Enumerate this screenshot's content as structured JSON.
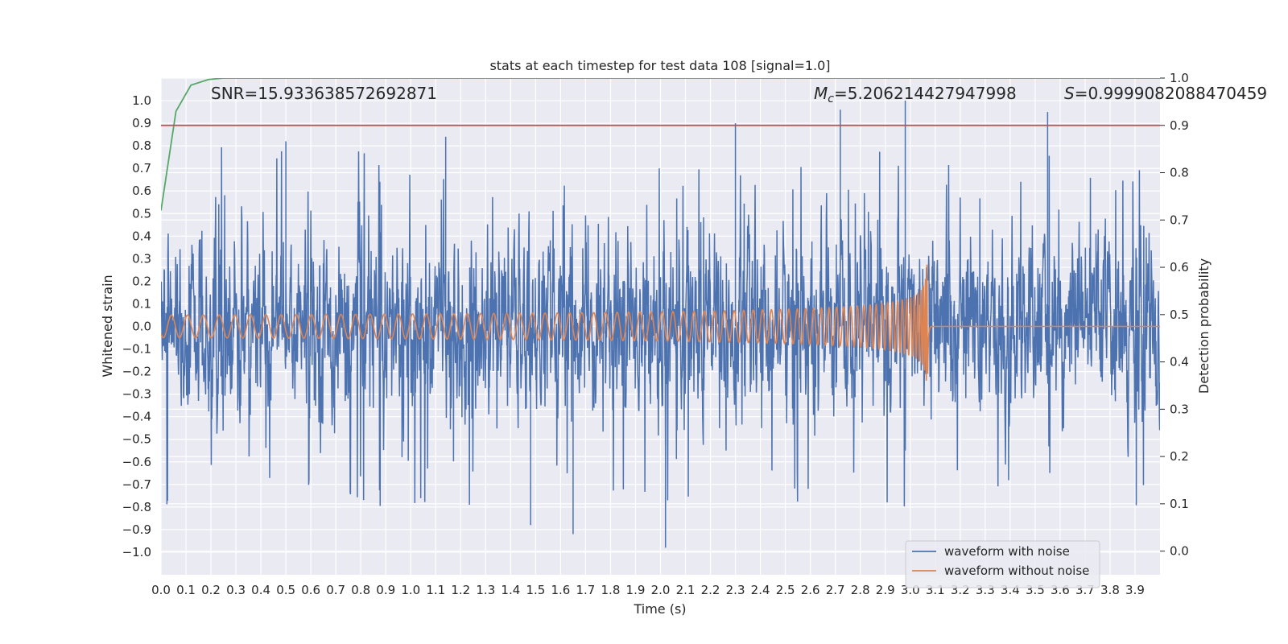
{
  "chart_data": {
    "type": "line",
    "title": "stats at each timestep for test data 108 [signal=1.0]",
    "xlabel": "Time (s)",
    "ylabel": "Whitened strain",
    "y2label": "Detection probability",
    "xlim": [
      0,
      4
    ],
    "ylim": [
      -1.1,
      1.1
    ],
    "y2lim": [
      -0.05,
      1.0
    ],
    "x_ticks": [
      0.0,
      0.1,
      0.2,
      0.3,
      0.4,
      0.5,
      0.6,
      0.7,
      0.8,
      0.9,
      1.0,
      1.1,
      1.2,
      1.3,
      1.4,
      1.5,
      1.6,
      1.7,
      1.8,
      1.9,
      2.0,
      2.1,
      2.2,
      2.3,
      2.4,
      2.5,
      2.6,
      2.7,
      2.8,
      2.9,
      3.0,
      3.1,
      3.2,
      3.3,
      3.4,
      3.5,
      3.6,
      3.7,
      3.8,
      3.9
    ],
    "y_ticks": [
      1.0,
      0.9,
      0.8,
      0.7,
      0.6,
      0.5,
      0.4,
      0.3,
      0.2,
      0.1,
      0.0,
      -0.1,
      -0.2,
      -0.3,
      -0.4,
      -0.5,
      -0.6,
      -0.7,
      -0.8,
      -0.9,
      -1.0
    ],
    "y2_ticks": [
      1.0,
      0.9,
      0.8,
      0.7,
      0.6,
      0.5,
      0.4,
      0.3,
      0.2,
      0.1,
      0.0
    ],
    "grid": true,
    "legend_position": "bottom-right",
    "annotations": {
      "snr": "SNR=15.933638572692871",
      "mc_prefix": "M",
      "mc_sub": "c",
      "mc_value": "=5.206214427947998",
      "s_prefix": "S",
      "s_value": "=0.9999082088470459"
    },
    "series": [
      {
        "name": "waveform with noise",
        "color": "#4c72b0",
        "axis": "left",
        "kind": "noisy-strain",
        "amplitude_typical": 0.3,
        "peak_max": 1.0,
        "peak_min": -0.98
      },
      {
        "name": "waveform without noise",
        "color": "#dd8452",
        "axis": "left",
        "kind": "chirp",
        "start_amplitude": 0.05,
        "merger_time": 3.07,
        "merger_peak": 0.44,
        "merger_trough": -0.38
      },
      {
        "color": "#55a868",
        "axis": "right",
        "x": [
          0.0,
          0.06,
          0.12,
          0.19,
          0.25,
          0.3,
          4.0
        ],
        "y": [
          0.72,
          0.93,
          0.985,
          0.997,
          1.0,
          1.0,
          1.0
        ]
      },
      {
        "color": "#c44e52",
        "axis": "right",
        "x": [
          0.0,
          4.0
        ],
        "y": [
          0.9,
          0.9
        ]
      }
    ]
  }
}
